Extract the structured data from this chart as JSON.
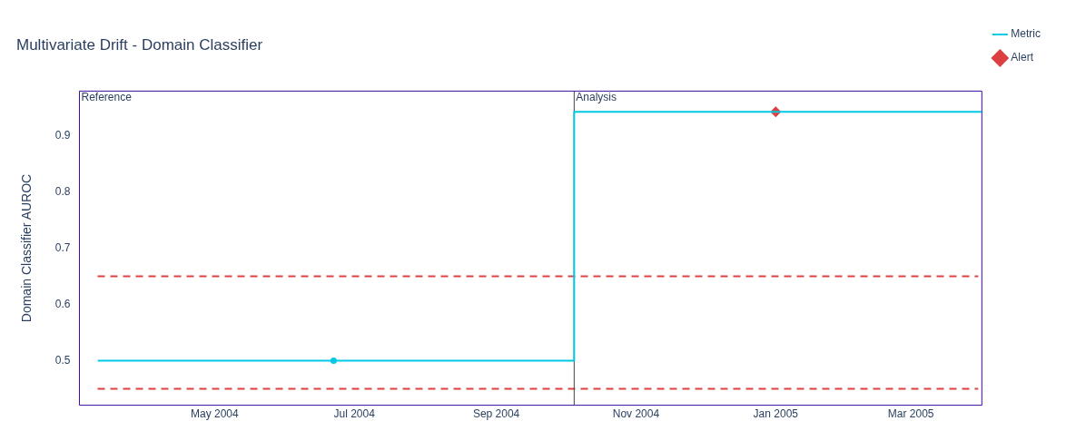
{
  "chart_data": {
    "type": "line",
    "title": "Multivariate Drift - Domain Classifier",
    "ylabel": "Domain Classifier AUROC",
    "xlim": [
      "2004-03-03",
      "2005-04-01"
    ],
    "xticks": [
      {
        "value": "2004-05-01",
        "label": "May 2004"
      },
      {
        "value": "2004-07-01",
        "label": "Jul 2004"
      },
      {
        "value": "2004-09-01",
        "label": "Sep 2004"
      },
      {
        "value": "2004-11-01",
        "label": "Nov 2004"
      },
      {
        "value": "2005-01-01",
        "label": "Jan 2005"
      },
      {
        "value": "2005-03-01",
        "label": "Mar 2005"
      }
    ],
    "ylim": [
      0.421,
      0.979
    ],
    "yticks": [
      0.5,
      0.6,
      0.7,
      0.8,
      0.9
    ],
    "series": [
      {
        "name": "Metric",
        "type": "line",
        "color": "#00c8e5",
        "marker": "none",
        "line_style": "solid",
        "x": [
          "2004-03-11",
          "2004-06-22",
          "2004-10-05",
          "2004-10-05",
          "2005-01-01",
          "2005-04-01"
        ],
        "values": [
          0.5,
          0.5,
          0.5,
          0.942,
          0.942,
          0.942
        ]
      },
      {
        "type": "scatter",
        "color": "#00c8e5",
        "marker": "circle",
        "x": [
          "2004-06-22"
        ],
        "values": [
          0.5
        ]
      },
      {
        "name": "Alert",
        "type": "scatter",
        "color": "#dd4040",
        "marker": "diamond",
        "x": [
          "2005-01-01"
        ],
        "values": [
          0.942
        ]
      }
    ],
    "ref_lines": [
      {
        "axis": "y",
        "value": 0.65,
        "color": "#dd4040",
        "line_style": "dashed"
      },
      {
        "axis": "y",
        "value": 0.45,
        "color": "#dd4040",
        "line_style": "dashed"
      },
      {
        "axis": "x",
        "value": "2004-10-05",
        "color": "#444444",
        "line_style": "solid"
      }
    ],
    "annotations": [
      "Reference",
      "Analysis"
    ],
    "legend": "top right"
  }
}
